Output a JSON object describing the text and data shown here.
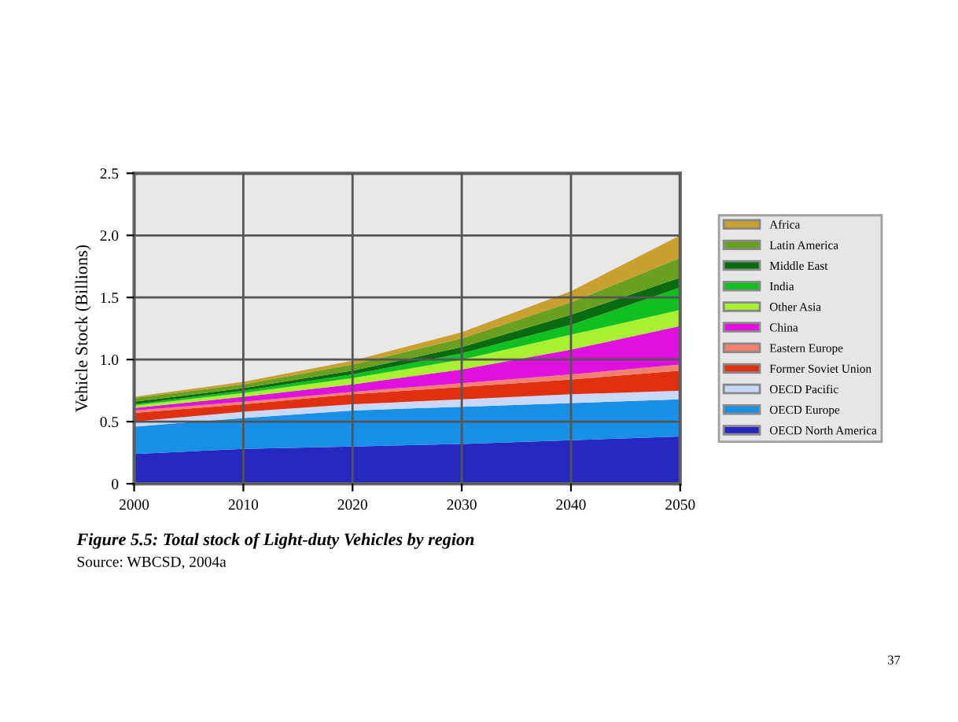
{
  "chart_data": {
    "type": "area",
    "stacked": true,
    "x": [
      2000,
      2010,
      2020,
      2030,
      2040,
      2050
    ],
    "xlim": [
      2000,
      2050
    ],
    "xticks": [
      2000,
      2010,
      2020,
      2030,
      2040,
      2050
    ],
    "ylim": [
      0,
      2.5
    ],
    "yticks": [
      0,
      0.5,
      {
        "value": 1.0,
        "label": "1.0"
      },
      1.5,
      {
        "value": 2.0,
        "label": "2.0"
      },
      2.5
    ],
    "ylabel": "Vehicle Stock (Billions)",
    "grid": true,
    "legend": "right",
    "annotations": [
      "Figure 5.5: Total stock of Light-duty Vehicles by region",
      "Source: WBCSD, 2004a",
      "37"
    ],
    "series": [
      {
        "name": "OECD North America",
        "color": "#2828c0",
        "values": [
          0.24,
          0.28,
          0.3,
          0.32,
          0.35,
          0.38
        ]
      },
      {
        "name": "OECD Europe",
        "color": "#1890e8",
        "values": [
          0.22,
          0.25,
          0.29,
          0.3,
          0.3,
          0.3
        ]
      },
      {
        "name": "OECD Pacific",
        "color": "#c8d8f8",
        "values": [
          0.04,
          0.05,
          0.05,
          0.06,
          0.07,
          0.07
        ]
      },
      {
        "name": "Former Soviet Union",
        "color": "#e03010",
        "values": [
          0.07,
          0.06,
          0.08,
          0.1,
          0.12,
          0.16
        ]
      },
      {
        "name": "Eastern Europe",
        "color": "#f08070",
        "values": [
          0.02,
          0.02,
          0.02,
          0.03,
          0.04,
          0.05
        ]
      },
      {
        "name": "China",
        "color": "#e010e0",
        "values": [
          0.02,
          0.04,
          0.06,
          0.11,
          0.2,
          0.31
        ]
      },
      {
        "name": "Other Asia",
        "color": "#a8f030",
        "values": [
          0.02,
          0.03,
          0.05,
          0.08,
          0.12,
          0.13
        ]
      },
      {
        "name": "India",
        "color": "#10c020",
        "values": [
          0.01,
          0.02,
          0.03,
          0.05,
          0.08,
          0.18
        ]
      },
      {
        "name": "Middle East",
        "color": "#0a6a10",
        "values": [
          0.02,
          0.02,
          0.03,
          0.05,
          0.08,
          0.08
        ]
      },
      {
        "name": "Latin America",
        "color": "#6aa020",
        "values": [
          0.03,
          0.03,
          0.05,
          0.07,
          0.1,
          0.16
        ]
      },
      {
        "name": "Africa",
        "color": "#c8a030",
        "values": [
          0.01,
          0.02,
          0.03,
          0.05,
          0.09,
          0.18
        ]
      }
    ]
  }
}
